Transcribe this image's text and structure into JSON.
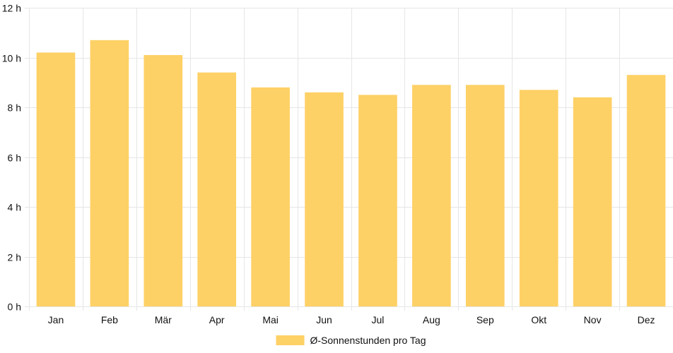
{
  "chart_data": {
    "type": "bar",
    "categories": [
      "Jan",
      "Feb",
      "Mär",
      "Apr",
      "Mai",
      "Jun",
      "Jul",
      "Aug",
      "Sep",
      "Okt",
      "Nov",
      "Dez"
    ],
    "series": [
      {
        "name": "Ø-Sonnenstunden pro Tag",
        "values": [
          10.2,
          10.7,
          10.1,
          9.4,
          8.8,
          8.6,
          8.5,
          8.9,
          8.9,
          8.7,
          8.4,
          9.3
        ],
        "color": "#fed166"
      }
    ],
    "ylim": [
      0,
      12
    ],
    "yticks": [
      0,
      2,
      4,
      6,
      8,
      10,
      12
    ],
    "y_unit_suffix": " h",
    "grid": true,
    "legend": "bottom-center",
    "colors": {
      "bar": "#fed166",
      "grid": "#e6e6e6",
      "text": "#111111"
    }
  }
}
